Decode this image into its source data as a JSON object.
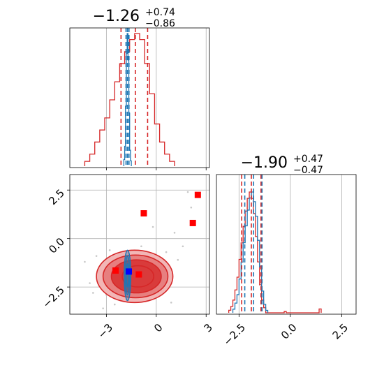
{
  "colors": {
    "red": "#d62728",
    "blue": "#1f77b4",
    "marker_blue": "#0000ff",
    "marker_red": "#ff0000",
    "grid": "#b0b0b0",
    "fill_light": "#f2b6b6",
    "fill_mid": "#e77f7f",
    "fill_dark": "#d93b3b"
  },
  "chart_data": [
    {
      "type": "histogram",
      "panel": "marginal-param-1",
      "title": {
        "value": "−1.26",
        "upper": "+0.74",
        "lower": "−0.86"
      },
      "xlim": [
        -5.2,
        3.2
      ],
      "grid": true,
      "xticks": [
        -3,
        0,
        3
      ],
      "series": [
        {
          "name": "",
          "color": "#d62728",
          "bins": [
            [
              -4.3,
              -4.0,
              0.004
            ],
            [
              -4.0,
              -3.7,
              0.01
            ],
            [
              -3.7,
              -3.4,
              0.02
            ],
            [
              -3.4,
              -3.1,
              0.03
            ],
            [
              -3.1,
              -2.8,
              0.04
            ],
            [
              -2.8,
              -2.5,
              0.055
            ],
            [
              -2.5,
              -2.2,
              0.07
            ],
            [
              -2.2,
              -1.9,
              0.085
            ],
            [
              -1.9,
              -1.6,
              0.095
            ],
            [
              -1.6,
              -1.3,
              0.105
            ],
            [
              -1.3,
              -1.0,
              0.11
            ],
            [
              -1.0,
              -0.7,
              0.105
            ],
            [
              -0.7,
              -0.4,
              0.085
            ],
            [
              -0.4,
              -0.1,
              0.06
            ],
            [
              -0.1,
              0.2,
              0.035
            ],
            [
              0.2,
              0.5,
              0.02
            ],
            [
              0.5,
              0.8,
              0.01
            ],
            [
              0.8,
              1.1,
              0.004
            ]
          ],
          "quantiles": [
            -2.12,
            -1.26,
            -0.52
          ]
        },
        {
          "name": "",
          "color": "#1f77b4",
          "bins": [
            [
              -1.95,
              -1.9,
              0.05
            ],
            [
              -1.9,
              -1.85,
              0.15
            ],
            [
              -1.85,
              -1.8,
              0.45
            ],
            [
              -1.8,
              -1.75,
              0.85
            ],
            [
              -1.75,
              -1.7,
              1.0
            ],
            [
              -1.7,
              -1.65,
              0.8
            ],
            [
              -1.65,
              -1.6,
              0.4
            ],
            [
              -1.6,
              -1.55,
              0.12
            ],
            [
              -1.55,
              -1.5,
              0.04
            ]
          ],
          "quantiles": [
            -1.82,
            -1.73,
            -1.64
          ]
        }
      ]
    },
    {
      "type": "contour",
      "panel": "joint-param-1-param-2",
      "xlim": [
        -5.2,
        3.2
      ],
      "ylim": [
        -3.9,
        3.3
      ],
      "grid": true,
      "xticks": [
        -3,
        0,
        3
      ],
      "yticks": [
        2.5,
        0.0,
        -2.5
      ],
      "red_levels": [
        {
          "cx": -1.3,
          "cy": -1.95,
          "rx": 2.3,
          "ry": 1.35,
          "fill": "#f2b6b6"
        },
        {
          "cx": -1.25,
          "cy": -1.95,
          "rx": 1.95,
          "ry": 1.1,
          "fill": "#e77f7f"
        },
        {
          "cx": -1.2,
          "cy": -1.95,
          "rx": 1.5,
          "ry": 0.85,
          "fill": "#d93b3b"
        },
        {
          "cx": -1.1,
          "cy": -1.95,
          "rx": 0.95,
          "ry": 0.55,
          "fill": "#d93b3b"
        }
      ],
      "blue_levels": [
        {
          "cx": -1.73,
          "cy": -1.9,
          "rx": 0.2,
          "ry": 1.3
        },
        {
          "cx": -1.73,
          "cy": -1.9,
          "rx": 0.13,
          "ry": 1.0
        },
        {
          "cx": -1.73,
          "cy": -1.9,
          "rx": 0.07,
          "ry": 0.6
        }
      ],
      "red_markers": [
        [
          -2.45,
          -1.65
        ],
        [
          -1.05,
          -1.85
        ],
        [
          -0.75,
          1.3
        ],
        [
          2.2,
          0.8
        ],
        [
          2.5,
          2.25
        ]
      ],
      "blue_markers": [
        [
          -1.65,
          -1.7
        ]
      ],
      "scatter": [
        [
          -3.8,
          -2.8
        ],
        [
          -3.2,
          -3.6
        ],
        [
          -2.5,
          -3.4
        ],
        [
          -0.3,
          -3.1
        ],
        [
          0.3,
          -2.9
        ],
        [
          0.8,
          -2.3
        ],
        [
          1.3,
          -1.1
        ],
        [
          1.6,
          -0.4
        ],
        [
          2.1,
          1.6
        ],
        [
          1.9,
          2.4
        ],
        [
          -4.3,
          -1.2
        ],
        [
          -3.6,
          -0.9
        ],
        [
          -2.8,
          -0.6
        ],
        [
          -0.9,
          -0.4
        ],
        [
          0.6,
          -0.7
        ],
        [
          -0.2,
          0.6
        ],
        [
          1.1,
          0.3
        ],
        [
          -3.0,
          -2.9
        ],
        [
          -4.0,
          -2.3
        ],
        [
          0.9,
          -3.3
        ]
      ]
    },
    {
      "type": "histogram",
      "panel": "marginal-param-2",
      "title": {
        "value": "−1.90",
        "upper": "+0.47",
        "lower": "−0.47"
      },
      "xlim": [
        -3.6,
        3.2
      ],
      "grid": true,
      "xticks": [
        -2.5,
        0.0,
        2.5
      ],
      "series": [
        {
          "name": "",
          "color": "#d62728",
          "bins": [
            [
              -3.0,
              -2.9,
              0.02
            ],
            [
              -2.9,
              -2.8,
              0.05
            ],
            [
              -2.8,
              -2.7,
              0.1
            ],
            [
              -2.7,
              -2.6,
              0.18
            ],
            [
              -2.6,
              -2.5,
              0.28
            ],
            [
              -2.5,
              -2.4,
              0.42
            ],
            [
              -2.4,
              -2.3,
              0.55
            ],
            [
              -2.3,
              -2.2,
              0.68
            ],
            [
              -2.2,
              -2.1,
              0.8
            ],
            [
              -2.1,
              -2.0,
              0.9
            ],
            [
              -2.0,
              -1.9,
              0.95
            ],
            [
              -1.9,
              -1.8,
              0.9
            ],
            [
              -1.8,
              -1.7,
              0.78
            ],
            [
              -1.7,
              -1.6,
              0.6
            ],
            [
              -1.6,
              -1.5,
              0.4
            ],
            [
              -1.5,
              -1.4,
              0.22
            ],
            [
              -1.4,
              -1.3,
              0.1
            ],
            [
              -1.3,
              -1.2,
              0.04
            ],
            [
              -0.3,
              -0.2,
              0.01
            ],
            [
              1.4,
              1.5,
              0.03
            ]
          ],
          "quantiles": [
            -2.37,
            -1.9,
            -1.43
          ]
        },
        {
          "name": "",
          "color": "#1f77b4",
          "bins": [
            [
              -2.8,
              -2.7,
              0.03
            ],
            [
              -2.7,
              -2.6,
              0.08
            ],
            [
              -2.6,
              -2.5,
              0.15
            ],
            [
              -2.5,
              -2.4,
              0.28
            ],
            [
              -2.4,
              -2.3,
              0.42
            ],
            [
              -2.3,
              -2.2,
              0.58
            ],
            [
              -2.2,
              -2.1,
              0.72
            ],
            [
              -2.1,
              -2.0,
              0.85
            ],
            [
              -2.0,
              -1.9,
              0.95
            ],
            [
              -1.9,
              -1.8,
              1.0
            ],
            [
              -1.8,
              -1.7,
              0.92
            ],
            [
              -1.7,
              -1.6,
              0.8
            ],
            [
              -1.6,
              -1.5,
              0.6
            ],
            [
              -1.5,
              -1.4,
              0.38
            ],
            [
              -1.4,
              -1.3,
              0.18
            ],
            [
              -1.3,
              -1.2,
              0.07
            ],
            [
              -1.2,
              -1.1,
              0.02
            ]
          ],
          "quantiles": [
            -2.22,
            -1.79,
            -1.38
          ]
        }
      ]
    }
  ]
}
